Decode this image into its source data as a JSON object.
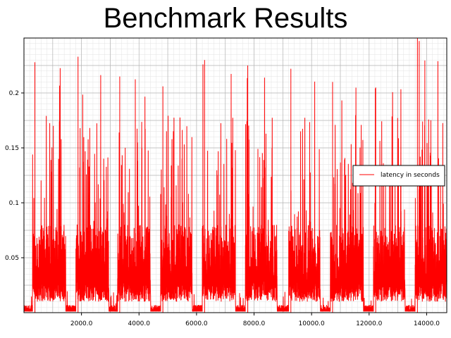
{
  "chart_data": {
    "type": "line",
    "title": "Benchmark Results",
    "xlabel": "",
    "ylabel": "",
    "xlim": [
      0,
      14700
    ],
    "ylim": [
      0,
      0.25
    ],
    "x_ticks": [
      "2000.0",
      "4000.0",
      "6000.0",
      "8000.0",
      "10000.0",
      "12000.0",
      "14000.0"
    ],
    "x_tick_values": [
      2000,
      4000,
      6000,
      8000,
      10000,
      12000,
      14000
    ],
    "y_ticks": [
      "0.05",
      "0.1",
      "0.15",
      "0.2"
    ],
    "y_tick_values": [
      0.05,
      0.1,
      0.15,
      0.2
    ],
    "grid": true,
    "legend_position": "right",
    "series": [
      {
        "name": "latency in seconds",
        "color": "#ff0000",
        "bursts": [
          {
            "x_start": 300,
            "x_end": 1450,
            "base": 0.03,
            "peak": 0.228
          },
          {
            "x_start": 1800,
            "x_end": 2950,
            "base": 0.03,
            "peak": 0.233
          },
          {
            "x_start": 3250,
            "x_end": 4400,
            "base": 0.03,
            "peak": 0.215
          },
          {
            "x_start": 4750,
            "x_end": 5850,
            "base": 0.03,
            "peak": 0.206
          },
          {
            "x_start": 6200,
            "x_end": 7350,
            "base": 0.03,
            "peak": 0.23
          },
          {
            "x_start": 7700,
            "x_end": 8800,
            "base": 0.03,
            "peak": 0.225
          },
          {
            "x_start": 9200,
            "x_end": 10300,
            "base": 0.03,
            "peak": 0.222
          },
          {
            "x_start": 10650,
            "x_end": 11800,
            "base": 0.03,
            "peak": 0.21
          },
          {
            "x_start": 12150,
            "x_end": 13250,
            "base": 0.03,
            "peak": 0.205
          },
          {
            "x_start": 13600,
            "x_end": 14700,
            "base": 0.03,
            "peak": 0.25
          }
        ],
        "idle_level": 0.005
      }
    ]
  }
}
